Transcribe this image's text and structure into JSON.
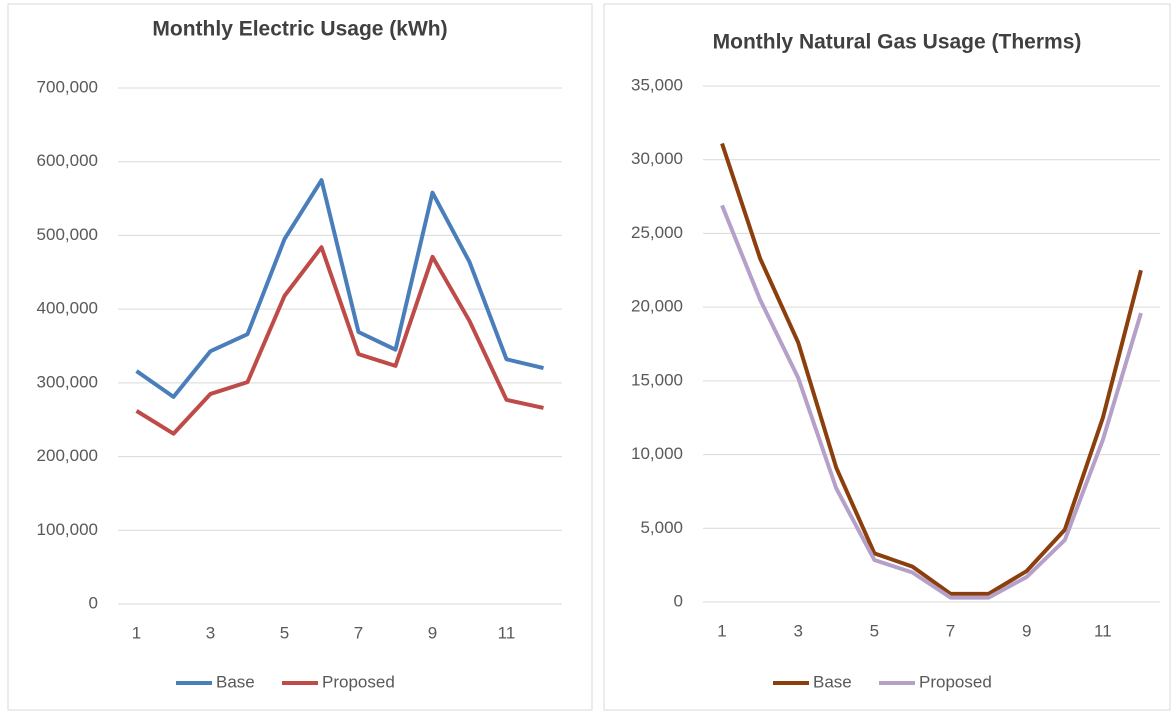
{
  "chart_data": [
    {
      "type": "line",
      "title": "Monthly Electric Usage (kWh)",
      "x": [
        1,
        2,
        3,
        4,
        5,
        6,
        7,
        8,
        9,
        10,
        11,
        12
      ],
      "xlim": [
        0.5,
        12.5
      ],
      "xticks": [
        1,
        3,
        5,
        7,
        9,
        11
      ],
      "ylim": [
        0,
        700000
      ],
      "yticks": [
        0,
        {
          "value": 100000,
          "label": "100,000"
        },
        {
          "value": 200000,
          "label": "200,000"
        },
        {
          "value": 300000,
          "label": "300,000"
        },
        {
          "value": 400000,
          "label": "400,000"
        },
        {
          "value": 500000,
          "label": "500,000"
        },
        {
          "value": 600000,
          "label": "600,000"
        },
        {
          "value": 700000,
          "label": "700,000"
        }
      ],
      "grid": true,
      "legend": "bottom",
      "series": [
        {
          "name": "Base",
          "color": "#4a7ebb",
          "values": [
            316000,
            281000,
            343000,
            366000,
            495000,
            575000,
            369000,
            345000,
            558000,
            464000,
            332000,
            320000
          ]
        },
        {
          "name": "Proposed",
          "color": "#be4b48",
          "values": [
            262000,
            231000,
            285000,
            301000,
            418000,
            484000,
            339000,
            323000,
            471000,
            384000,
            277000,
            266000
          ]
        }
      ]
    },
    {
      "type": "line",
      "title": "Monthly Natural Gas Usage (Therms)",
      "x": [
        1,
        2,
        3,
        4,
        5,
        6,
        7,
        8,
        9,
        10,
        11,
        12
      ],
      "xlim": [
        0.5,
        12.5
      ],
      "xticks": [
        1,
        3,
        5,
        7,
        9,
        11
      ],
      "ylim": [
        0,
        35000
      ],
      "yticks": [
        0,
        {
          "value": 5000,
          "label": "5,000"
        },
        {
          "value": 10000,
          "label": "10,000"
        },
        {
          "value": 15000,
          "label": "15,000"
        },
        {
          "value": 20000,
          "label": "20,000"
        },
        {
          "value": 25000,
          "label": "25,000"
        },
        {
          "value": 30000,
          "label": "30,000"
        },
        {
          "value": 35000,
          "label": "35,000"
        }
      ],
      "grid": true,
      "legend": "bottom",
      "series": [
        {
          "name": "Base",
          "color": "#8b3f0c",
          "values": [
            31100,
            23300,
            17600,
            9100,
            3300,
            2400,
            550,
            550,
            2100,
            4900,
            12500,
            22500
          ]
        },
        {
          "name": "Proposed",
          "color": "#b4a0c8",
          "values": [
            26900,
            20500,
            15200,
            7700,
            2850,
            2000,
            300,
            300,
            1700,
            4200,
            11000,
            19600
          ]
        }
      ]
    }
  ]
}
